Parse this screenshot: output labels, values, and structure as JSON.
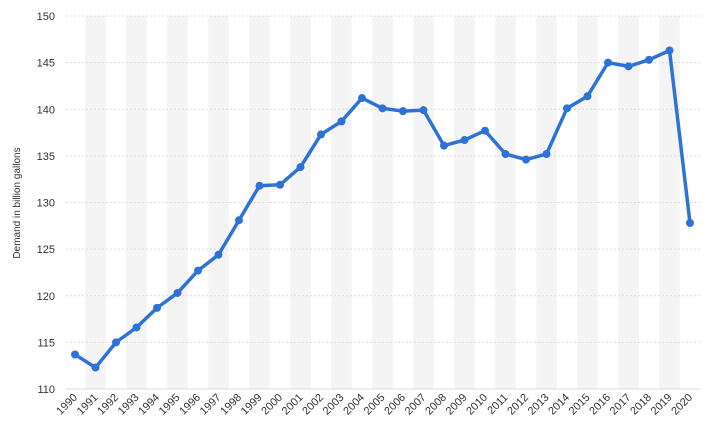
{
  "chart_data": {
    "type": "line",
    "title": "",
    "xlabel": "",
    "ylabel": "Demand in billion gallons",
    "ylim": [
      110,
      150
    ],
    "yticks": [
      110,
      115,
      120,
      125,
      130,
      135,
      140,
      145,
      150
    ],
    "categories": [
      "1990",
      "1991",
      "1992",
      "1993",
      "1994",
      "1995",
      "1996",
      "1997",
      "1998",
      "1999",
      "2000",
      "2001",
      "2002",
      "2003",
      "2004",
      "2005",
      "2006",
      "2007",
      "2008",
      "2009",
      "2010",
      "2011",
      "2012",
      "2013",
      "2014",
      "2015",
      "2016",
      "2017",
      "2018",
      "2019",
      "2020"
    ],
    "values": [
      113.7,
      112.3,
      115.0,
      116.6,
      118.7,
      120.3,
      122.7,
      124.4,
      128.1,
      131.8,
      131.9,
      133.8,
      137.3,
      138.7,
      141.2,
      140.1,
      139.8,
      139.9,
      136.1,
      136.7,
      137.7,
      135.2,
      134.6,
      135.2,
      140.1,
      141.4,
      145.0,
      144.6,
      145.3,
      146.3,
      127.8
    ],
    "grid": true,
    "legend": "none",
    "line_color": "#2f72d6",
    "band_color": "#f4f4f4",
    "grid_color": "#dcdcdc"
  }
}
